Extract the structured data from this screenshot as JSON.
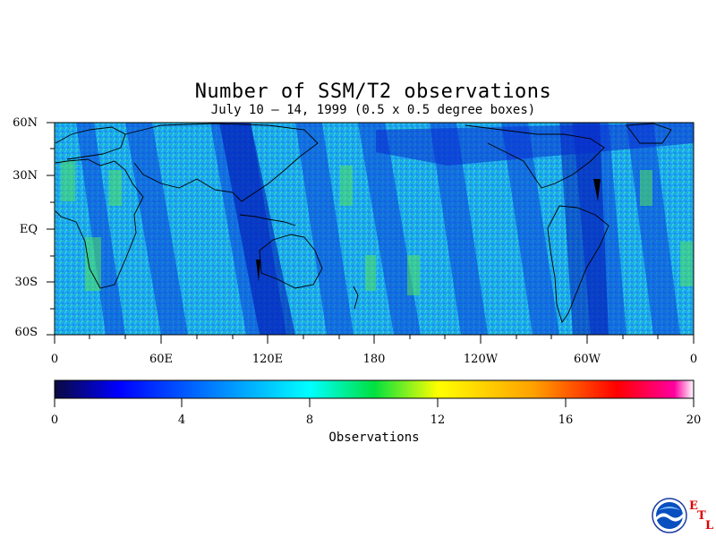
{
  "title": "Number of SSM/T2 observations",
  "subtitle": "July 10 – 14, 1999 (0.5 x 0.5 degree boxes)",
  "map": {
    "lat_labels": [
      "60N",
      "30N",
      "EQ",
      "30S",
      "60S"
    ],
    "lon_labels": [
      "0",
      "60E",
      "120E",
      "180",
      "120W",
      "60W",
      "0"
    ]
  },
  "colorbar": {
    "ticks": [
      "0",
      "4",
      "8",
      "12",
      "16",
      "20"
    ],
    "label": "Observations",
    "range": [
      0,
      20
    ],
    "colors": [
      "#0a0a40",
      "#0000ff",
      "#00a0ff",
      "#00ffff",
      "#00e000",
      "#ffff00",
      "#ff8000",
      "#ff0000",
      "#ff00a0",
      "#ffffff"
    ]
  },
  "logo": {
    "name": "NOAA",
    "letters": [
      "E",
      "T",
      "L"
    ]
  }
}
